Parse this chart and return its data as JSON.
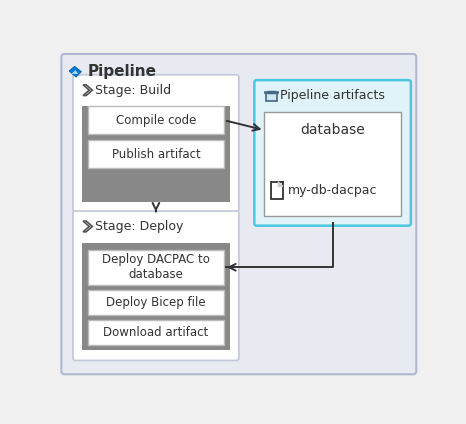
{
  "title": "Pipeline",
  "bg_outer": "#e8eaf2",
  "bg_outer_border": "#b0b8d0",
  "pipeline_artifacts_bg": "#dff3f8",
  "pipeline_artifacts_border": "#4ac8e0",
  "stage_bg": "#ffffff",
  "stage_border": "#c0c8d8",
  "job_bg": "#888888",
  "job_inner_bg": "#ffffff",
  "job_inner_border": "#bbbbbb",
  "artifact_inner_bg": "#ffffff",
  "artifact_inner_border": "#999999",
  "text_color": "#333333",
  "arrow_color": "#333333",
  "stage_build_label": "Stage: Build",
  "stage_deploy_label": "Stage: Deploy",
  "artifacts_label": "Pipeline artifacts",
  "artifact_name": "database",
  "artifact_file": "my-db-dacpac",
  "build_steps": [
    "Compile code",
    "Publish artifact"
  ],
  "deploy_steps": [
    "Download artifact",
    "Deploy Bicep file",
    "Deploy DACPAC to\ndatabase"
  ],
  "fig_bg": "#f0f0f0"
}
